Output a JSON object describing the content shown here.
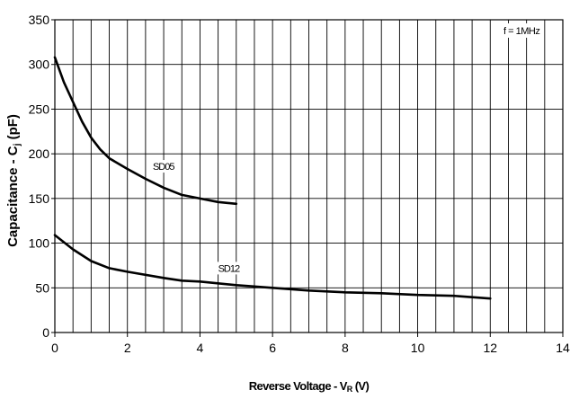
{
  "chart_data": {
    "type": "line",
    "xlabel": "Reverse Voltage - V",
    "xlabel_sub": "R",
    "xlabel_unit": " (V)",
    "ylabel": "Capacitance - C",
    "ylabel_sub": "j",
    "ylabel_unit": " (pF)",
    "xlim": [
      0,
      14
    ],
    "ylim": [
      0,
      350
    ],
    "x_ticks": [
      0,
      2,
      4,
      6,
      8,
      10,
      12,
      14
    ],
    "y_ticks": [
      0,
      50,
      100,
      150,
      200,
      250,
      300,
      350
    ],
    "x_minor_step": 0.5,
    "grid": true,
    "annotation": "f = 1MHz",
    "series": [
      {
        "name": "SD05",
        "color": "#000000",
        "x": [
          0,
          0.25,
          0.5,
          0.75,
          1,
          1.25,
          1.5,
          2,
          2.5,
          3,
          3.5,
          4,
          4.5,
          5
        ],
        "y": [
          308,
          280,
          258,
          236,
          218,
          205,
          195,
          183,
          172,
          162,
          154,
          150,
          146,
          144
        ],
        "label_pos": [
          2.7,
          182
        ]
      },
      {
        "name": "SD12",
        "color": "#000000",
        "x": [
          0,
          0.5,
          1,
          1.5,
          2,
          3,
          3.5,
          4,
          5,
          6,
          7,
          8,
          9,
          10,
          11,
          12
        ],
        "y": [
          109,
          93,
          80,
          72,
          68,
          61,
          58,
          57,
          53,
          50,
          47,
          45,
          44,
          42,
          41,
          38
        ],
        "label_pos": [
          4.5,
          68
        ]
      }
    ]
  }
}
